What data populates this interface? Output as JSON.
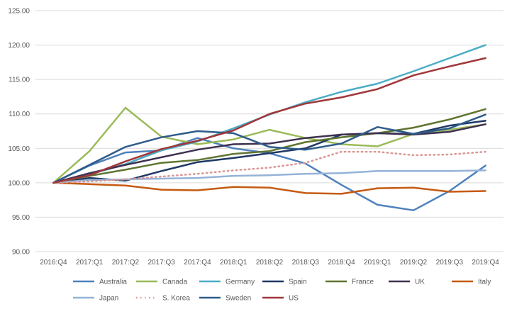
{
  "chart_data": {
    "type": "line",
    "title": "",
    "xlabel": "",
    "ylabel": "",
    "categories": [
      "2016:Q4",
      "2017:Q1",
      "2017:Q2",
      "2017:Q3",
      "2017:Q4",
      "2018:Q1",
      "2018:Q2",
      "2018:Q3",
      "2018:Q4",
      "2019:Q1",
      "2019:Q2",
      "2019:Q3",
      "2019:Q4"
    ],
    "ylim": [
      90,
      125
    ],
    "yticks": [
      "90.00",
      "95.00",
      "100.00",
      "105.00",
      "110.00",
      "115.00",
      "120.00",
      "125.00"
    ],
    "grid": true,
    "legend_position": "bottom",
    "series": [
      {
        "name": "Australia",
        "color": "#4F81BD",
        "dash": "solid",
        "values": [
          100.0,
          102.5,
          104.4,
          104.7,
          106.5,
          105.0,
          104.3,
          102.8,
          99.7,
          96.8,
          96.0,
          98.8,
          102.5
        ]
      },
      {
        "name": "Canada",
        "color": "#9BBB59",
        "dash": "solid",
        "values": [
          100.0,
          104.6,
          110.9,
          106.7,
          105.6,
          106.3,
          107.7,
          106.5,
          105.6,
          105.3,
          107.1,
          107.7,
          108.5
        ]
      },
      {
        "name": "Germany",
        "color": "#4BACC6",
        "dash": "solid",
        "values": [
          100.0,
          101.2,
          102.7,
          104.7,
          106.0,
          107.9,
          109.9,
          111.7,
          113.2,
          114.4,
          116.2,
          118.1,
          120.0
        ]
      },
      {
        "name": "Spain",
        "color": "#1F3864",
        "dash": "solid",
        "values": [
          100.0,
          100.7,
          100.3,
          101.7,
          103.0,
          103.6,
          104.3,
          105.0,
          107.0,
          107.2,
          107.1,
          108.3,
          109.0
        ]
      },
      {
        "name": "France",
        "color": "#5F7530",
        "dash": "solid",
        "values": [
          100.0,
          101.0,
          101.9,
          102.9,
          103.3,
          104.2,
          104.6,
          105.9,
          106.6,
          107.2,
          108.0,
          109.2,
          110.7
        ]
      },
      {
        "name": "UK",
        "color": "#3F3151",
        "dash": "solid",
        "values": [
          100.0,
          101.4,
          102.6,
          103.7,
          104.8,
          105.6,
          105.7,
          106.5,
          107.0,
          107.2,
          107.0,
          107.4,
          108.5
        ]
      },
      {
        "name": "Italy",
        "color": "#C55A11",
        "dash": "solid",
        "values": [
          100.0,
          99.8,
          99.6,
          99.0,
          98.9,
          99.4,
          99.3,
          98.5,
          98.4,
          99.2,
          99.3,
          98.7,
          98.8
        ]
      },
      {
        "name": "Japan",
        "color": "#95B3D7",
        "dash": "solid",
        "values": [
          100.0,
          100.4,
          100.5,
          100.6,
          100.7,
          101.0,
          101.1,
          101.3,
          101.4,
          101.7,
          101.7,
          101.7,
          101.8
        ]
      },
      {
        "name": "S. Korea",
        "color": "#D99694",
        "dash": "dot",
        "values": [
          100.0,
          100.2,
          100.5,
          100.9,
          101.3,
          101.8,
          102.2,
          102.9,
          104.5,
          104.5,
          104.0,
          104.1,
          104.5
        ]
      },
      {
        "name": "Sweden",
        "color": "#2E5C8A",
        "dash": "solid",
        "values": [
          100.0,
          102.6,
          105.2,
          106.6,
          107.5,
          107.2,
          105.2,
          104.8,
          105.7,
          108.1,
          107.1,
          107.9,
          109.9
        ]
      },
      {
        "name": "US",
        "color": "#A0373A",
        "dash": "solid",
        "values": [
          100.0,
          101.1,
          103.1,
          104.9,
          106.1,
          107.6,
          110.0,
          111.5,
          112.4,
          113.6,
          115.6,
          116.9,
          118.1
        ]
      }
    ]
  }
}
